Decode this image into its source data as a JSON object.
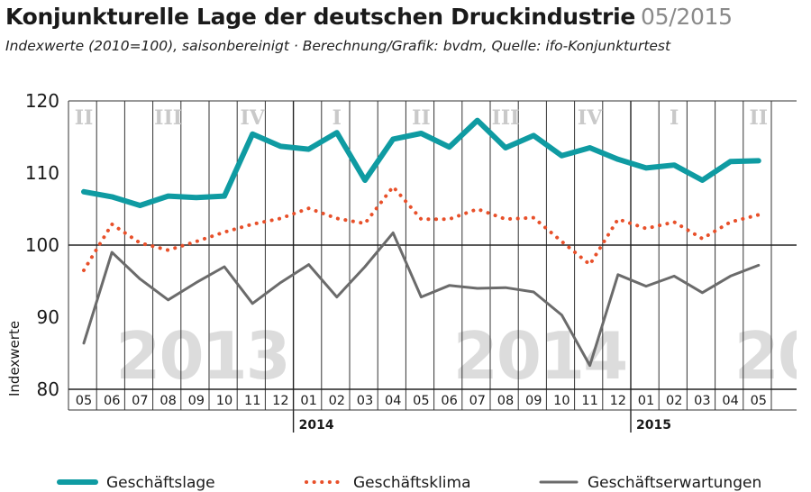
{
  "header": {
    "title": "Konjunkturelle Lage der deutschen Druckindustrie",
    "date": "05/2015",
    "subtitle": "Indexwerte (2010=100), saisonbereinigt · Berechnung/Grafik: bvdm, Quelle: ifo-Konjunkturtest"
  },
  "chart_data": {
    "type": "line",
    "ylabel": "Indexwerte",
    "ylim": [
      80,
      120
    ],
    "yticks": [
      80,
      90,
      100,
      110,
      120
    ],
    "grid": "vertical month lines, horizontal line at 100",
    "x": [
      "05",
      "06",
      "07",
      "08",
      "09",
      "10",
      "11",
      "12",
      "01",
      "02",
      "03",
      "04",
      "05",
      "06",
      "07",
      "08",
      "09",
      "10",
      "11",
      "12",
      "01",
      "02",
      "03",
      "04",
      "05"
    ],
    "year_markers": [
      {
        "label": "2014",
        "at_index": 8
      },
      {
        "label": "2015",
        "at_index": 20
      }
    ],
    "quarter_labels": [
      {
        "label": "II",
        "at_index": 0
      },
      {
        "label": "III",
        "at_index": 3
      },
      {
        "label": "IV",
        "at_index": 6
      },
      {
        "label": "I",
        "at_index": 9
      },
      {
        "label": "II",
        "at_index": 12
      },
      {
        "label": "III",
        "at_index": 15
      },
      {
        "label": "IV",
        "at_index": 18
      },
      {
        "label": "I",
        "at_index": 21
      },
      {
        "label": "II",
        "at_index": 24
      }
    ],
    "background_years": [
      {
        "label": "2013",
        "at_index": 2
      },
      {
        "label": "2014",
        "at_index": 14
      },
      {
        "label": "20",
        "at_index": 24
      }
    ],
    "series": [
      {
        "name": "Geschäftslage",
        "color": "#0f9ba2",
        "style": "solid-thick",
        "values": [
          107.4,
          106.7,
          105.5,
          106.8,
          106.6,
          106.8,
          115.4,
          113.7,
          113.3,
          115.6,
          109.0,
          114.7,
          115.5,
          113.6,
          117.3,
          113.5,
          115.2,
          112.4,
          113.5,
          111.9,
          110.7,
          111.1,
          109.0,
          111.6,
          111.7
        ]
      },
      {
        "name": "Geschäftsklima",
        "color": "#e8502a",
        "style": "dotted",
        "values": [
          96.5,
          102.9,
          100.3,
          99.3,
          100.5,
          101.8,
          102.9,
          103.7,
          105.1,
          103.7,
          103.0,
          108.1,
          103.6,
          103.6,
          105.0,
          103.6,
          103.8,
          100.5,
          97.3,
          103.6,
          102.3,
          103.2,
          100.9,
          103.2,
          104.2
        ]
      },
      {
        "name": "Geschäftserwartungen",
        "color": "#6b6b6b",
        "style": "solid-thin",
        "values": [
          86.4,
          99.0,
          95.3,
          92.4,
          94.8,
          97.0,
          91.9,
          94.8,
          97.3,
          92.8,
          97.0,
          101.7,
          92.8,
          94.4,
          94.0,
          94.1,
          93.5,
          90.3,
          83.3,
          95.9,
          94.3,
          95.7,
          93.4,
          95.7,
          97.2
        ]
      }
    ]
  }
}
